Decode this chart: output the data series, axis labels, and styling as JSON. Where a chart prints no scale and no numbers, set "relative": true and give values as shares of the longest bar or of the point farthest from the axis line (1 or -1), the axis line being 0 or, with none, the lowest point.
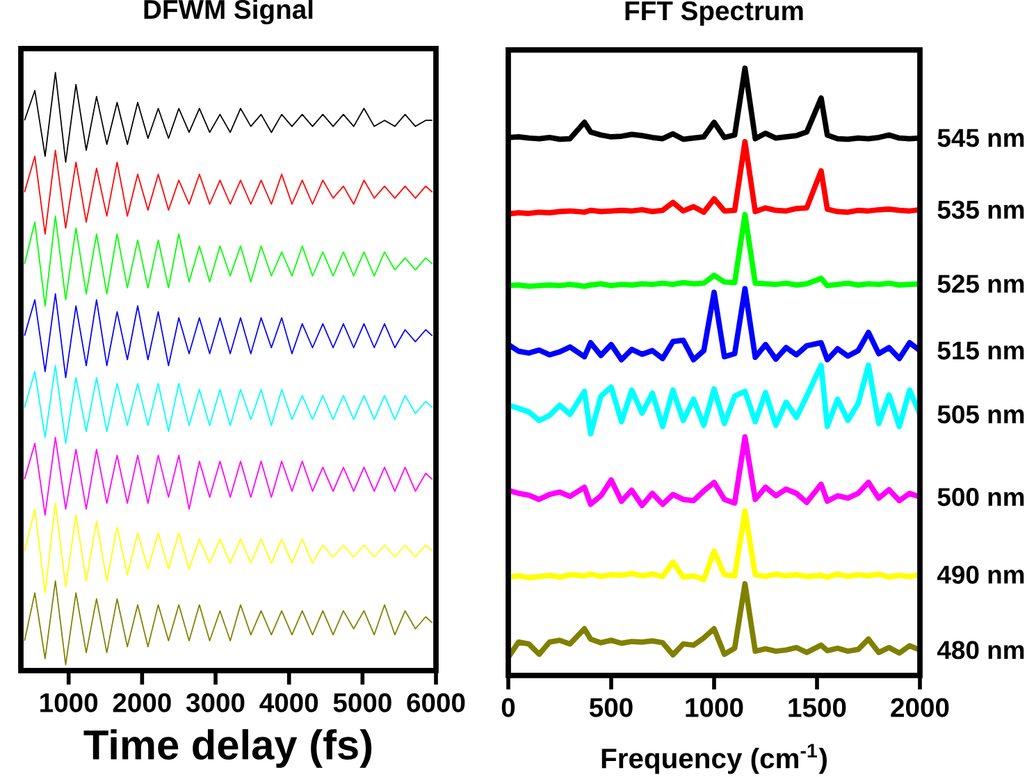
{
  "chart_data": [
    {
      "type": "line",
      "title": "DFWM Signal",
      "xlabel": "Time delay (fs)",
      "relative": true,
      "marker": "none",
      "xlim": [
        350,
        6000
      ],
      "xticks": [
        1000,
        2000,
        3000,
        4000,
        5000,
        6000
      ],
      "x": [
        400,
        540,
        680,
        820,
        960,
        1100,
        1240,
        1380,
        1520,
        1660,
        1800,
        1940,
        2080,
        2220,
        2360,
        2500,
        2640,
        2780,
        2920,
        3060,
        3200,
        3340,
        3480,
        3620,
        3760,
        3900,
        4040,
        4180,
        4320,
        4460,
        4600,
        4740,
        4880,
        5020,
        5160,
        5300,
        5440,
        5580,
        5720,
        5860,
        5950
      ],
      "series": [
        {
          "color": "#000000",
          "values": [
            0.92,
            0.97,
            0.86,
            1.0,
            0.85,
            0.98,
            0.87,
            0.96,
            0.88,
            0.95,
            0.88,
            0.95,
            0.89,
            0.94,
            0.89,
            0.94,
            0.9,
            0.94,
            0.9,
            0.93,
            0.9,
            0.94,
            0.91,
            0.93,
            0.9,
            0.93,
            0.91,
            0.93,
            0.91,
            0.93,
            0.91,
            0.93,
            0.91,
            0.94,
            0.91,
            0.92,
            0.91,
            0.93,
            0.91,
            0.92,
            0.92
          ]
        },
        {
          "color": "#ff0000",
          "values": [
            0.8,
            0.86,
            0.73,
            0.87,
            0.74,
            0.85,
            0.75,
            0.84,
            0.76,
            0.85,
            0.76,
            0.83,
            0.77,
            0.83,
            0.77,
            0.82,
            0.78,
            0.83,
            0.78,
            0.82,
            0.78,
            0.82,
            0.78,
            0.82,
            0.78,
            0.83,
            0.78,
            0.82,
            0.78,
            0.82,
            0.79,
            0.81,
            0.78,
            0.82,
            0.79,
            0.81,
            0.79,
            0.81,
            0.79,
            0.81,
            0.8
          ]
        },
        {
          "color": "#00ff00",
          "values": [
            0.68,
            0.75,
            0.61,
            0.76,
            0.62,
            0.74,
            0.63,
            0.73,
            0.63,
            0.73,
            0.64,
            0.72,
            0.64,
            0.72,
            0.64,
            0.73,
            0.65,
            0.71,
            0.65,
            0.71,
            0.66,
            0.71,
            0.65,
            0.71,
            0.66,
            0.7,
            0.66,
            0.71,
            0.66,
            0.7,
            0.66,
            0.7,
            0.66,
            0.7,
            0.66,
            0.7,
            0.67,
            0.69,
            0.67,
            0.69,
            0.68
          ]
        },
        {
          "color": "#0000ff",
          "values": [
            0.56,
            0.62,
            0.5,
            0.63,
            0.49,
            0.61,
            0.51,
            0.62,
            0.51,
            0.6,
            0.52,
            0.61,
            0.52,
            0.6,
            0.51,
            0.59,
            0.53,
            0.59,
            0.53,
            0.59,
            0.53,
            0.59,
            0.53,
            0.59,
            0.54,
            0.59,
            0.53,
            0.58,
            0.54,
            0.58,
            0.54,
            0.58,
            0.54,
            0.58,
            0.54,
            0.58,
            0.54,
            0.57,
            0.55,
            0.57,
            0.56
          ]
        },
        {
          "color": "#00ffff",
          "values": [
            0.44,
            0.5,
            0.39,
            0.51,
            0.38,
            0.49,
            0.4,
            0.49,
            0.4,
            0.48,
            0.41,
            0.48,
            0.41,
            0.48,
            0.4,
            0.48,
            0.41,
            0.47,
            0.41,
            0.47,
            0.41,
            0.47,
            0.42,
            0.47,
            0.41,
            0.47,
            0.42,
            0.46,
            0.42,
            0.46,
            0.42,
            0.46,
            0.42,
            0.46,
            0.42,
            0.46,
            0.42,
            0.46,
            0.43,
            0.45,
            0.44
          ]
        },
        {
          "color": "#ff00ff",
          "values": [
            0.32,
            0.38,
            0.26,
            0.39,
            0.27,
            0.37,
            0.27,
            0.37,
            0.28,
            0.36,
            0.28,
            0.36,
            0.28,
            0.36,
            0.29,
            0.36,
            0.27,
            0.35,
            0.29,
            0.35,
            0.29,
            0.35,
            0.29,
            0.35,
            0.29,
            0.35,
            0.3,
            0.35,
            0.3,
            0.34,
            0.3,
            0.34,
            0.3,
            0.34,
            0.3,
            0.34,
            0.3,
            0.34,
            0.3,
            0.33,
            0.32
          ]
        },
        {
          "color": "#ffff00",
          "values": [
            0.2,
            0.27,
            0.13,
            0.28,
            0.14,
            0.26,
            0.15,
            0.25,
            0.15,
            0.24,
            0.16,
            0.23,
            0.17,
            0.23,
            0.17,
            0.23,
            0.17,
            0.22,
            0.18,
            0.22,
            0.18,
            0.22,
            0.18,
            0.22,
            0.18,
            0.22,
            0.18,
            0.22,
            0.18,
            0.21,
            0.19,
            0.21,
            0.19,
            0.21,
            0.19,
            0.21,
            0.19,
            0.21,
            0.19,
            0.21,
            0.2
          ]
        },
        {
          "color": "#808000",
          "values": [
            0.05,
            0.13,
            0.02,
            0.15,
            0.01,
            0.13,
            0.03,
            0.12,
            0.03,
            0.12,
            0.04,
            0.11,
            0.04,
            0.11,
            0.05,
            0.11,
            0.05,
            0.11,
            0.05,
            0.1,
            0.05,
            0.11,
            0.06,
            0.1,
            0.06,
            0.1,
            0.06,
            0.1,
            0.06,
            0.1,
            0.06,
            0.1,
            0.07,
            0.1,
            0.06,
            0.11,
            0.06,
            0.1,
            0.07,
            0.09,
            0.08
          ]
        }
      ]
    },
    {
      "type": "line",
      "title": "FFT Spectrum",
      "xlabel": "Frequency (cm$^{-1}$)",
      "relative": true,
      "marker": "none",
      "xlim": [
        0,
        2000
      ],
      "xticks": [
        0,
        500,
        1000,
        1500,
        2000
      ],
      "x": [
        0,
        50,
        100,
        150,
        200,
        250,
        300,
        370,
        400,
        450,
        500,
        550,
        600,
        650,
        700,
        750,
        800,
        850,
        900,
        950,
        1000,
        1050,
        1100,
        1150,
        1200,
        1250,
        1300,
        1350,
        1400,
        1450,
        1520,
        1550,
        1600,
        1650,
        1700,
        1750,
        1800,
        1850,
        1900,
        1950,
        2000
      ],
      "series": [
        {
          "name": "545 nm",
          "color": "#000000",
          "values": [
            0.886,
            0.887,
            0.885,
            0.884,
            0.886,
            0.883,
            0.884,
            0.911,
            0.895,
            0.89,
            0.887,
            0.888,
            0.891,
            0.889,
            0.886,
            0.884,
            0.892,
            0.883,
            0.885,
            0.887,
            0.911,
            0.886,
            0.89,
            1.0,
            0.884,
            0.893,
            0.885,
            0.887,
            0.889,
            0.895,
            0.951,
            0.89,
            0.884,
            0.883,
            0.885,
            0.884,
            0.886,
            0.89,
            0.885,
            0.884,
            0.885
          ]
        },
        {
          "name": "535 nm",
          "color": "#ff0000",
          "values": [
            0.76,
            0.762,
            0.761,
            0.763,
            0.762,
            0.764,
            0.765,
            0.763,
            0.766,
            0.764,
            0.765,
            0.766,
            0.765,
            0.767,
            0.764,
            0.766,
            0.779,
            0.765,
            0.772,
            0.763,
            0.785,
            0.765,
            0.766,
            0.879,
            0.764,
            0.77,
            0.766,
            0.765,
            0.769,
            0.77,
            0.831,
            0.768,
            0.764,
            0.763,
            0.766,
            0.765,
            0.767,
            0.768,
            0.766,
            0.765,
            0.767
          ]
        },
        {
          "name": "525 nm",
          "color": "#00ff00",
          "values": [
            0.642,
            0.643,
            0.641,
            0.642,
            0.643,
            0.642,
            0.644,
            0.641,
            0.643,
            0.645,
            0.642,
            0.644,
            0.643,
            0.645,
            0.644,
            0.646,
            0.644,
            0.647,
            0.645,
            0.646,
            0.659,
            0.648,
            0.647,
            0.759,
            0.646,
            0.645,
            0.644,
            0.646,
            0.643,
            0.645,
            0.654,
            0.642,
            0.644,
            0.646,
            0.643,
            0.645,
            0.644,
            0.646,
            0.643,
            0.644,
            0.645
          ]
        },
        {
          "name": "515 nm",
          "color": "#0000ff",
          "values": [
            0.545,
            0.534,
            0.531,
            0.536,
            0.528,
            0.533,
            0.541,
            0.525,
            0.548,
            0.527,
            0.545,
            0.52,
            0.537,
            0.529,
            0.535,
            0.522,
            0.55,
            0.552,
            0.52,
            0.535,
            0.631,
            0.525,
            0.53,
            0.637,
            0.524,
            0.545,
            0.521,
            0.54,
            0.528,
            0.543,
            0.548,
            0.52,
            0.538,
            0.526,
            0.535,
            0.565,
            0.53,
            0.54,
            0.522,
            0.548,
            0.535
          ]
        },
        {
          "name": "505 nm",
          "color": "#00ffff",
          "values": [
            0.445,
            0.44,
            0.434,
            0.42,
            0.428,
            0.445,
            0.43,
            0.468,
            0.398,
            0.46,
            0.475,
            0.418,
            0.47,
            0.432,
            0.465,
            0.41,
            0.47,
            0.42,
            0.455,
            0.412,
            0.472,
            0.415,
            0.46,
            0.468,
            0.418,
            0.466,
            0.412,
            0.45,
            0.425,
            0.46,
            0.511,
            0.41,
            0.455,
            0.42,
            0.448,
            0.511,
            0.415,
            0.462,
            0.41,
            0.47,
            0.43
          ]
        },
        {
          "name": "500 nm",
          "color": "#ff00ff",
          "values": [
            0.305,
            0.3,
            0.297,
            0.29,
            0.298,
            0.302,
            0.295,
            0.31,
            0.282,
            0.296,
            0.322,
            0.287,
            0.305,
            0.28,
            0.3,
            0.282,
            0.298,
            0.29,
            0.288,
            0.304,
            0.318,
            0.29,
            0.284,
            0.393,
            0.29,
            0.31,
            0.296,
            0.307,
            0.3,
            0.285,
            0.315,
            0.287,
            0.296,
            0.292,
            0.3,
            0.318,
            0.292,
            0.306,
            0.288,
            0.3,
            0.294
          ]
        },
        {
          "name": "490 nm",
          "color": "#ffff00",
          "values": [
            0.162,
            0.164,
            0.161,
            0.163,
            0.165,
            0.162,
            0.166,
            0.164,
            0.167,
            0.163,
            0.166,
            0.165,
            0.168,
            0.164,
            0.167,
            0.163,
            0.187,
            0.162,
            0.164,
            0.158,
            0.205,
            0.166,
            0.164,
            0.271,
            0.166,
            0.163,
            0.167,
            0.164,
            0.166,
            0.163,
            0.165,
            0.162,
            0.167,
            0.163,
            0.166,
            0.164,
            0.167,
            0.162,
            0.165,
            0.163,
            0.166
          ]
        },
        {
          "name": "480 nm",
          "color": "#808000",
          "values": [
            0.03,
            0.055,
            0.052,
            0.035,
            0.055,
            0.058,
            0.052,
            0.077,
            0.06,
            0.054,
            0.058,
            0.053,
            0.056,
            0.055,
            0.057,
            0.054,
            0.034,
            0.052,
            0.05,
            0.062,
            0.077,
            0.035,
            0.045,
            0.151,
            0.04,
            0.044,
            0.04,
            0.042,
            0.046,
            0.038,
            0.05,
            0.041,
            0.045,
            0.04,
            0.043,
            0.06,
            0.038,
            0.046,
            0.037,
            0.049,
            0.042
          ]
        }
      ]
    }
  ]
}
